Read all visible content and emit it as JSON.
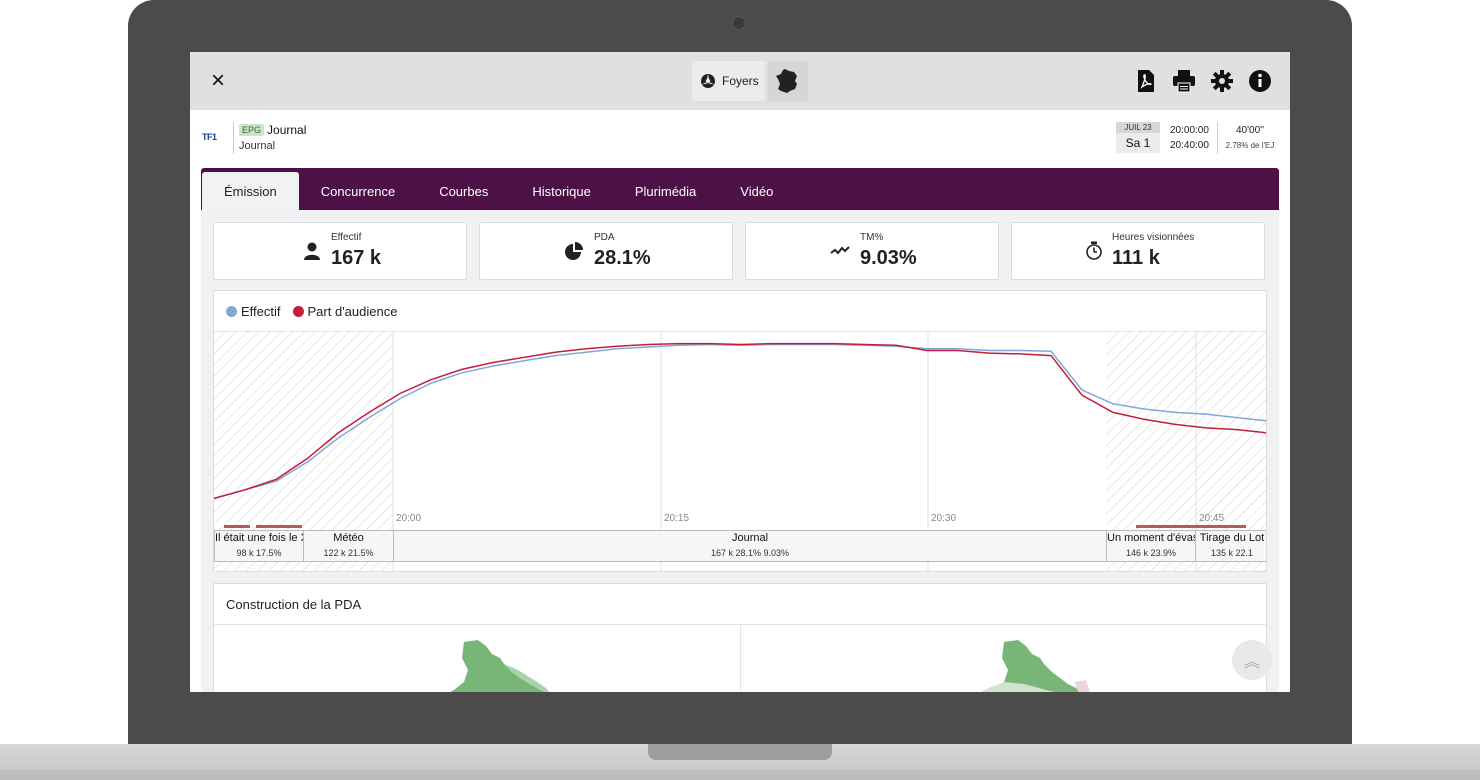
{
  "toolbar": {
    "close_label": "×",
    "target_label": "Foyers",
    "icons": [
      "close-icon",
      "foyers-icon",
      "france-map-icon",
      "pdf-icon",
      "print-icon",
      "gear-icon",
      "info-icon"
    ]
  },
  "program": {
    "channel_logo": "TF1",
    "epg_badge": "EPG",
    "title": "Journal",
    "subtitle": "Journal",
    "date_month": "JUIL 23",
    "date_day": "Sa 1",
    "time_start": "20:00:00",
    "time_end": "20:40:00",
    "duration": "40'00''",
    "duration_share": "2.78% de l'EJ"
  },
  "tabs": [
    {
      "label": "Émission",
      "active": true
    },
    {
      "label": "Concurrence",
      "active": false
    },
    {
      "label": "Courbes",
      "active": false
    },
    {
      "label": "Historique",
      "active": false
    },
    {
      "label": "Plurimédia",
      "active": false
    },
    {
      "label": "Vidéo",
      "active": false
    }
  ],
  "kpis": [
    {
      "label": "Effectif",
      "value": "167 k",
      "icon": "person-icon"
    },
    {
      "label": "PDA",
      "value": "28.1%",
      "icon": "pie-icon"
    },
    {
      "label": "TM%",
      "value": "9.03%",
      "icon": "trend-icon"
    },
    {
      "label": "Heures visionnées",
      "value": "111 k",
      "icon": "stopwatch-icon"
    }
  ],
  "chart_data": {
    "type": "line",
    "legend": [
      "Effectif",
      "Part d'audience"
    ],
    "colors": {
      "effectif": "#7fa8d8",
      "pda": "#c41e3a"
    },
    "x_ticks": [
      "20:00",
      "20:15",
      "20:30",
      "20:45"
    ],
    "series": [
      {
        "name": "Effectif",
        "values": [
          5,
          10,
          15,
          26,
          40,
          52,
          63,
          72,
          78,
          82,
          85,
          88,
          90,
          92,
          93,
          94,
          94.5,
          94,
          94.5,
          94.5,
          94.5,
          94,
          93.5,
          92,
          92,
          91,
          91,
          90.5,
          68,
          60,
          57,
          55,
          54,
          52,
          50
        ]
      },
      {
        "name": "Part d'audience",
        "values": [
          5,
          10,
          16,
          28,
          43,
          55,
          66,
          74,
          80,
          84,
          87,
          90,
          92,
          93.5,
          94.5,
          95,
          95,
          94.5,
          95,
          95,
          95,
          94.5,
          94,
          91,
          91,
          89.5,
          89,
          88,
          65,
          55,
          51,
          48,
          46,
          45,
          43
        ]
      }
    ]
  },
  "segments": [
    {
      "title": "Il était une fois le X",
      "stats": "98 k   17.5%"
    },
    {
      "title": "Météo",
      "stats": "122 k   21.5%"
    },
    {
      "title": "Journal",
      "stats": "167 k   28.1%   9.03%"
    },
    {
      "title": "Un moment d'évas",
      "stats": "146 k   23.9%"
    },
    {
      "title": "Tirage du Lot",
      "stats": "135 k   22.1"
    }
  ],
  "pda_card": {
    "title": "Construction de la PDA"
  }
}
